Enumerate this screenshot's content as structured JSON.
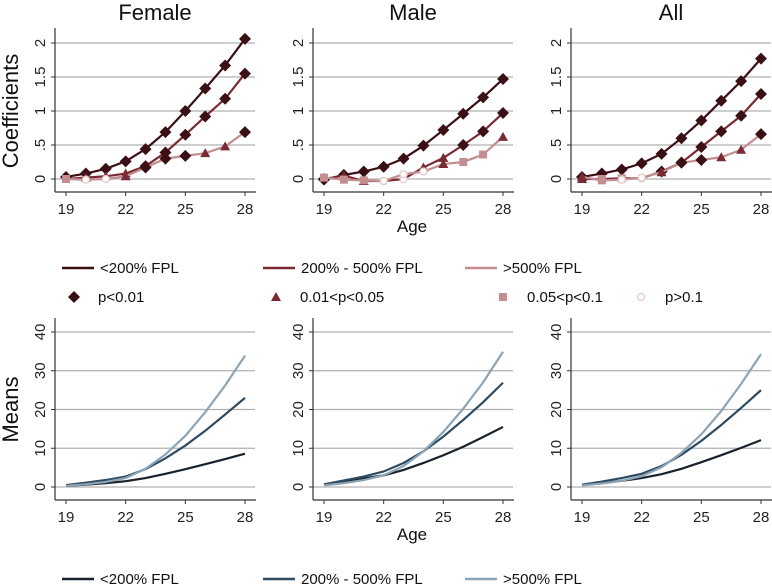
{
  "chart_data": [
    {
      "type": "line",
      "panel": "top",
      "title": "Female",
      "ylabel": "Coefficients",
      "xlabel": "",
      "x": [
        19,
        20,
        21,
        22,
        23,
        24,
        25,
        26,
        27,
        28
      ],
      "xticks": [
        "19",
        "22",
        "25",
        "28"
      ],
      "yticks": [
        "0",
        ".5",
        "1",
        "1.5",
        "2"
      ],
      "ylim": [
        -0.1,
        2.2
      ],
      "series": [
        {
          "name": "<200% FPL",
          "values": [
            0.03,
            0.08,
            0.15,
            0.26,
            0.44,
            0.69,
            1.0,
            1.33,
            1.67,
            2.06
          ],
          "markers": [
            "d",
            "d",
            "d",
            "d",
            "d",
            "d",
            "d",
            "d",
            "d",
            "d"
          ]
        },
        {
          "name": "200% - 500% FPL",
          "values": [
            0.0,
            0.02,
            0.04,
            0.08,
            0.19,
            0.39,
            0.65,
            0.92,
            1.18,
            1.55
          ],
          "markers": [
            "s",
            "t",
            "t",
            "t",
            "d",
            "d",
            "d",
            "d",
            "d",
            "d"
          ]
        },
        {
          "name": ">500% FPL",
          "values": [
            0.0,
            -0.01,
            0.0,
            0.04,
            0.17,
            0.3,
            0.34,
            0.38,
            0.48,
            0.69
          ],
          "markers": [
            "s",
            "o",
            "o",
            "t",
            "d",
            "d",
            "d",
            "t",
            "t",
            "d"
          ]
        }
      ]
    },
    {
      "type": "line",
      "panel": "top",
      "title": "Male",
      "ylabel": "",
      "xlabel": "Age",
      "x": [
        19,
        20,
        21,
        22,
        23,
        24,
        25,
        26,
        27,
        28
      ],
      "xticks": [
        "19",
        "22",
        "25",
        "28"
      ],
      "yticks": [
        "0",
        ".5",
        "1",
        "1.5",
        "2"
      ],
      "ylim": [
        -0.1,
        2.2
      ],
      "series": [
        {
          "name": "<200% FPL",
          "values": [
            -0.01,
            0.06,
            0.11,
            0.18,
            0.3,
            0.49,
            0.72,
            0.96,
            1.2,
            1.47
          ],
          "markers": [
            "d",
            "d",
            "d",
            "d",
            "d",
            "d",
            "d",
            "d",
            "d",
            "d"
          ]
        },
        {
          "name": "200% - 500% FPL",
          "values": [
            0.0,
            0.05,
            -0.03,
            -0.03,
            0.0,
            0.17,
            0.31,
            0.5,
            0.7,
            0.97
          ],
          "markers": [
            "d",
            "t",
            "t",
            "o",
            "o",
            "t",
            "t",
            "d",
            "d",
            "d"
          ]
        },
        {
          "name": ">500% FPL",
          "values": [
            0.02,
            -0.01,
            -0.02,
            -0.03,
            0.07,
            0.11,
            0.22,
            0.25,
            0.36,
            0.62
          ],
          "markers": [
            "s",
            "s",
            "s",
            "o",
            "o",
            "o",
            "t",
            "s",
            "s",
            "t"
          ]
        }
      ]
    },
    {
      "type": "line",
      "panel": "top",
      "title": "All",
      "ylabel": "",
      "xlabel": "",
      "x": [
        19,
        20,
        21,
        22,
        23,
        24,
        25,
        26,
        27,
        28
      ],
      "xticks": [
        "19",
        "22",
        "25",
        "28"
      ],
      "yticks": [
        "0",
        ".5",
        "1",
        "1.5",
        "2"
      ],
      "ylim": [
        -0.1,
        2.2
      ],
      "series": [
        {
          "name": "<200% FPL",
          "values": [
            0.03,
            0.08,
            0.14,
            0.23,
            0.37,
            0.6,
            0.86,
            1.15,
            1.44,
            1.77
          ],
          "markers": [
            "d",
            "d",
            "d",
            "d",
            "d",
            "d",
            "d",
            "d",
            "d",
            "d"
          ]
        },
        {
          "name": "200% - 500% FPL",
          "values": [
            0.0,
            0.0,
            0.01,
            0.01,
            0.11,
            0.24,
            0.47,
            0.7,
            0.93,
            1.25
          ],
          "markers": [
            "t",
            "s",
            "s",
            "o",
            "d",
            "d",
            "d",
            "d",
            "d",
            "d"
          ]
        },
        {
          "name": ">500% FPL",
          "values": [
            0.03,
            -0.02,
            -0.01,
            0.02,
            0.1,
            0.24,
            0.28,
            0.32,
            0.43,
            0.66
          ],
          "markers": [
            "t",
            "s",
            "o",
            "o",
            "t",
            "d",
            "d",
            "t",
            "t",
            "d"
          ]
        }
      ]
    },
    {
      "type": "line",
      "panel": "bottom",
      "title": "",
      "ylabel": "Means",
      "xlabel": "",
      "x": [
        19,
        20,
        21,
        22,
        23,
        24,
        25,
        26,
        27,
        28
      ],
      "xticks": [
        "19",
        "22",
        "25",
        "28"
      ],
      "yticks": [
        "0",
        "10",
        "20",
        "30",
        "40"
      ],
      "ylim": [
        -1,
        43
      ],
      "series": [
        {
          "name": "<200% FPL",
          "values": [
            0.3,
            0.6,
            1.0,
            1.5,
            2.3,
            3.4,
            4.6,
            5.9,
            7.2,
            8.6
          ]
        },
        {
          "name": "200% - 500% FPL",
          "values": [
            0.5,
            1.1,
            1.8,
            2.7,
            4.6,
            7.4,
            10.7,
            14.5,
            18.7,
            23.0
          ]
        },
        {
          "name": ">500% FPL",
          "values": [
            0.3,
            0.7,
            1.3,
            2.3,
            4.7,
            8.4,
            13.2,
            19.3,
            26.2,
            33.9
          ]
        }
      ]
    },
    {
      "type": "line",
      "panel": "bottom",
      "title": "",
      "ylabel": "",
      "xlabel": "Age",
      "x": [
        19,
        20,
        21,
        22,
        23,
        24,
        25,
        26,
        27,
        28
      ],
      "xticks": [
        "19",
        "22",
        "25",
        "28"
      ],
      "yticks": [
        "0",
        "10",
        "20",
        "30",
        "40"
      ],
      "ylim": [
        -1,
        43
      ],
      "series": [
        {
          "name": "<200% FPL",
          "values": [
            0.6,
            1.4,
            2.2,
            3.0,
            4.4,
            6.2,
            8.2,
            10.4,
            12.9,
            15.5
          ]
        },
        {
          "name": "200% - 500% FPL",
          "values": [
            0.7,
            1.7,
            2.7,
            4.0,
            6.2,
            9.2,
            13.0,
            17.3,
            21.9,
            26.9
          ]
        },
        {
          "name": ">500% FPL",
          "values": [
            0.4,
            1.0,
            1.8,
            3.0,
            5.4,
            9.2,
            14.2,
            20.2,
            27.0,
            34.9
          ]
        }
      ]
    },
    {
      "type": "line",
      "panel": "bottom",
      "title": "",
      "ylabel": "",
      "xlabel": "",
      "x": [
        19,
        20,
        21,
        22,
        23,
        24,
        25,
        26,
        27,
        28
      ],
      "xticks": [
        "19",
        "22",
        "25",
        "28"
      ],
      "yticks": [
        "0",
        "10",
        "20",
        "30",
        "40"
      ],
      "ylim": [
        -1,
        43
      ],
      "series": [
        {
          "name": "<200% FPL",
          "values": [
            0.5,
            1.0,
            1.6,
            2.3,
            3.3,
            4.7,
            6.4,
            8.2,
            10.1,
            12.1
          ]
        },
        {
          "name": "200% - 500% FPL",
          "values": [
            0.6,
            1.4,
            2.3,
            3.4,
            5.4,
            8.3,
            11.9,
            16.0,
            20.4,
            25.0
          ]
        },
        {
          "name": ">500% FPL",
          "values": [
            0.4,
            0.9,
            1.6,
            2.8,
            5.1,
            8.8,
            13.6,
            19.6,
            26.6,
            34.3
          ]
        }
      ]
    }
  ],
  "legend_top": {
    "lines": [
      "<200% FPL",
      "200% - 500% FPL",
      ">500% FPL"
    ],
    "markers": [
      "p<0.01",
      "0.01<p<0.05",
      "0.05<p<0.1",
      "p>0.1"
    ]
  },
  "legend_bottom": {
    "lines": [
      "<200% FPL",
      "200% - 500% FPL",
      ">500% FPL"
    ]
  },
  "colors": {
    "top": [
      "#3b1015",
      "#7a2a32",
      "#c48e90"
    ],
    "bottom": [
      "#17222d",
      "#2f4b61",
      "#8ba4b6"
    ],
    "marker_legend": [
      "#3b1015",
      "#7a2a32",
      "#c48e90",
      "#e8c8c8"
    ]
  }
}
